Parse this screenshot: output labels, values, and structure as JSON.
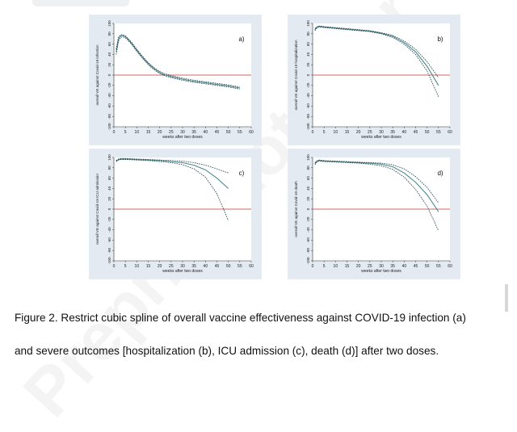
{
  "caption": {
    "line1": "Figure 2. Restrict cubic spline of overall vaccine effectiveness against COVID-19 infection (a)",
    "line2": "and  severe  outcomes  [hospitalization  (b),  ICU  admission  (c),  death  (d)]  after  two  doses."
  },
  "watermark": "Preprint not peer reviewed",
  "chart_data": [
    {
      "type": "line",
      "panel_label": "a)",
      "xlabel": "weeks after two doses",
      "ylabel": "overall VE against Covid-19 infection",
      "xlim": [
        0,
        60
      ],
      "ylim": [
        -100,
        100
      ],
      "xticks": [
        "0",
        "5",
        "10",
        "15",
        "20",
        "25",
        "30",
        "35",
        "40",
        "45",
        "50",
        "55",
        "60"
      ],
      "yticks": [
        "100",
        "80",
        "60",
        "40",
        "20",
        "0",
        "-20",
        "-40",
        "-60",
        "-80",
        "-100"
      ],
      "reference_line": 0,
      "series": [
        {
          "x": [
            1,
            2,
            3,
            4,
            5,
            6,
            8,
            10,
            12,
            14,
            16,
            18,
            20,
            22,
            25,
            30,
            35,
            40,
            45,
            50,
            55
          ],
          "values": [
            45,
            70,
            76,
            76,
            74,
            70,
            60,
            48,
            37,
            27,
            18,
            11,
            5,
            1,
            -3,
            -8,
            -12,
            -15,
            -18,
            -21,
            -25
          ]
        },
        {
          "x": [
            1,
            2,
            3,
            4,
            5,
            6,
            8,
            10,
            12,
            14,
            16,
            18,
            20,
            22,
            25,
            30,
            35,
            40,
            45,
            50,
            55
          ],
          "values": [
            40,
            66,
            73,
            74,
            72,
            68,
            58,
            46,
            35,
            25,
            16,
            9,
            3,
            -1,
            -5,
            -10,
            -14,
            -17,
            -20,
            -23,
            -27
          ]
        },
        {
          "x": [
            1,
            2,
            3,
            4,
            5,
            6,
            8,
            10,
            12,
            14,
            16,
            18,
            20,
            22,
            25,
            30,
            35,
            40,
            45,
            50,
            55
          ],
          "values": [
            50,
            74,
            78,
            78,
            76,
            72,
            62,
            50,
            39,
            29,
            20,
            13,
            7,
            3,
            -1,
            -6,
            -10,
            -13,
            -16,
            -19,
            -23
          ]
        }
      ]
    },
    {
      "type": "line",
      "panel_label": "b)",
      "xlabel": "weeks after two doses",
      "ylabel": "overall VE against Covid-19 hospitalization",
      "xlim": [
        0,
        60
      ],
      "ylim": [
        -100,
        100
      ],
      "xticks": [
        "0",
        "5",
        "10",
        "15",
        "20",
        "25",
        "30",
        "35",
        "40",
        "45",
        "50",
        "55",
        "60"
      ],
      "yticks": [
        "100",
        "80",
        "60",
        "40",
        "20",
        "0",
        "-20",
        "-40",
        "-60",
        "-80",
        "-100"
      ],
      "reference_line": 0,
      "series": [
        {
          "x": [
            1,
            2,
            3,
            5,
            10,
            15,
            20,
            25,
            30,
            35,
            40,
            45,
            50,
            55
          ],
          "values": [
            88,
            93,
            94,
            93,
            91,
            89,
            87,
            85,
            81,
            75,
            63,
            45,
            17,
            -20
          ]
        },
        {
          "x": [
            1,
            2,
            3,
            5,
            10,
            15,
            20,
            25,
            30,
            35,
            40,
            45,
            50,
            55
          ],
          "values": [
            86,
            92,
            93,
            92,
            90,
            88,
            86,
            84,
            80,
            73,
            60,
            40,
            8,
            -42
          ]
        },
        {
          "x": [
            1,
            2,
            3,
            5,
            10,
            15,
            20,
            25,
            30,
            35,
            40,
            45,
            50,
            55
          ],
          "values": [
            90,
            94,
            95,
            94,
            92,
            90,
            88,
            86,
            82,
            77,
            66,
            50,
            26,
            -5
          ]
        }
      ]
    },
    {
      "type": "line",
      "panel_label": "c)",
      "xlabel": "weeks after two doses",
      "ylabel": "overall VE against Covid-19 ICU admission",
      "xlim": [
        0,
        60
      ],
      "ylim": [
        -100,
        100
      ],
      "xticks": [
        "0",
        "5",
        "10",
        "15",
        "20",
        "25",
        "30",
        "35",
        "40",
        "45",
        "50",
        "55",
        "60"
      ],
      "yticks": [
        "100",
        "80",
        "60",
        "40",
        "20",
        "0",
        "-20",
        "-40",
        "-60",
        "-80",
        "-100"
      ],
      "reference_line": 0,
      "series": [
        {
          "x": [
            1,
            2,
            3,
            5,
            10,
            15,
            20,
            25,
            30,
            35,
            40,
            45,
            50
          ],
          "values": [
            93,
            96,
            97,
            97,
            96,
            95,
            94,
            92,
            90,
            85,
            76,
            60,
            40
          ]
        },
        {
          "x": [
            1,
            2,
            3,
            5,
            10,
            15,
            20,
            25,
            30,
            35,
            40,
            45,
            50
          ],
          "values": [
            92,
            95,
            96,
            96,
            95,
            94,
            92,
            90,
            86,
            78,
            62,
            30,
            -22
          ]
        },
        {
          "x": [
            1,
            2,
            3,
            5,
            10,
            15,
            20,
            25,
            30,
            35,
            40,
            45,
            50
          ],
          "values": [
            94,
            97,
            98,
            98,
            97,
            96,
            95,
            94,
            93,
            90,
            85,
            78,
            70
          ]
        }
      ]
    },
    {
      "type": "line",
      "panel_label": "d)",
      "xlabel": "weeks after two doses",
      "ylabel": "overall VE against Covid-19 death",
      "xlim": [
        0,
        60
      ],
      "ylim": [
        -100,
        100
      ],
      "xticks": [
        "0",
        "5",
        "10",
        "15",
        "20",
        "25",
        "30",
        "35",
        "40",
        "45",
        "50",
        "55",
        "60"
      ],
      "yticks": [
        "100",
        "80",
        "60",
        "40",
        "20",
        "0",
        "-20",
        "-40",
        "-60",
        "-80",
        "-100"
      ],
      "reference_line": 0,
      "series": [
        {
          "x": [
            1,
            2,
            3,
            5,
            10,
            15,
            20,
            25,
            30,
            35,
            40,
            45,
            50,
            55
          ],
          "values": [
            88,
            93,
            94,
            93,
            92,
            91,
            90,
            89,
            87,
            82,
            70,
            52,
            28,
            -5
          ]
        },
        {
          "x": [
            1,
            2,
            3,
            5,
            10,
            15,
            20,
            25,
            30,
            35,
            40,
            45,
            50,
            55
          ],
          "values": [
            86,
            92,
            93,
            92,
            91,
            90,
            89,
            87,
            84,
            77,
            62,
            38,
            6,
            -42
          ]
        },
        {
          "x": [
            1,
            2,
            3,
            5,
            10,
            15,
            20,
            25,
            30,
            35,
            40,
            45,
            50,
            55
          ],
          "values": [
            90,
            94,
            95,
            94,
            93,
            92,
            91,
            90,
            89,
            86,
            78,
            63,
            42,
            12
          ]
        }
      ]
    }
  ],
  "colors": {
    "panel_bg": "#e3eaf1",
    "estimate_line": "#4d8a8a",
    "ci_line": "#1a3a4a",
    "reference_line": "#c0392b"
  }
}
